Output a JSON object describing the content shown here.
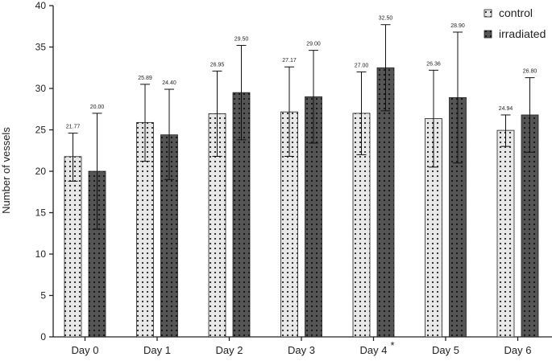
{
  "chart_data": {
    "type": "bar",
    "ylabel": "Number of vessels",
    "xlabel": "",
    "ylim": [
      0,
      40
    ],
    "yticks": [
      0,
      5,
      10,
      15,
      20,
      25,
      30,
      35,
      40
    ],
    "categories": [
      "Day 0",
      "Day 1",
      "Day 2",
      "Day 3",
      "Day 4",
      "Day 5",
      "Day 6"
    ],
    "category_marks": [
      "",
      "",
      "",
      "",
      "*",
      "",
      ""
    ],
    "legend_position": "top-right",
    "series": [
      {
        "name": "control",
        "fill": "#e8e8e8",
        "dot": "#222222",
        "values": [
          21.77,
          25.89,
          26.95,
          27.17,
          27.0,
          26.36,
          24.94
        ],
        "value_labels": [
          "21.77",
          "25.89",
          "26.95",
          "27.17",
          "27.00",
          "26.36",
          "24.94"
        ],
        "err_upper": [
          24.6,
          30.5,
          32.1,
          32.6,
          32.0,
          32.2,
          26.8
        ],
        "err_lower": [
          18.8,
          21.2,
          21.8,
          21.8,
          22.0,
          20.5,
          23.0
        ]
      },
      {
        "name": "irradiated",
        "fill": "#555555",
        "dot": "#111111",
        "values": [
          20.0,
          24.4,
          29.5,
          29.0,
          32.5,
          28.9,
          26.8
        ],
        "value_labels": [
          "20.00",
          "24.40",
          "29.50",
          "29.00",
          "32.50",
          "28.90",
          "26.80"
        ],
        "err_upper": [
          27.0,
          29.9,
          35.2,
          34.6,
          37.7,
          36.8,
          31.3
        ],
        "err_lower": [
          13.0,
          19.0,
          23.8,
          23.4,
          27.3,
          21.0,
          22.3
        ]
      }
    ]
  }
}
